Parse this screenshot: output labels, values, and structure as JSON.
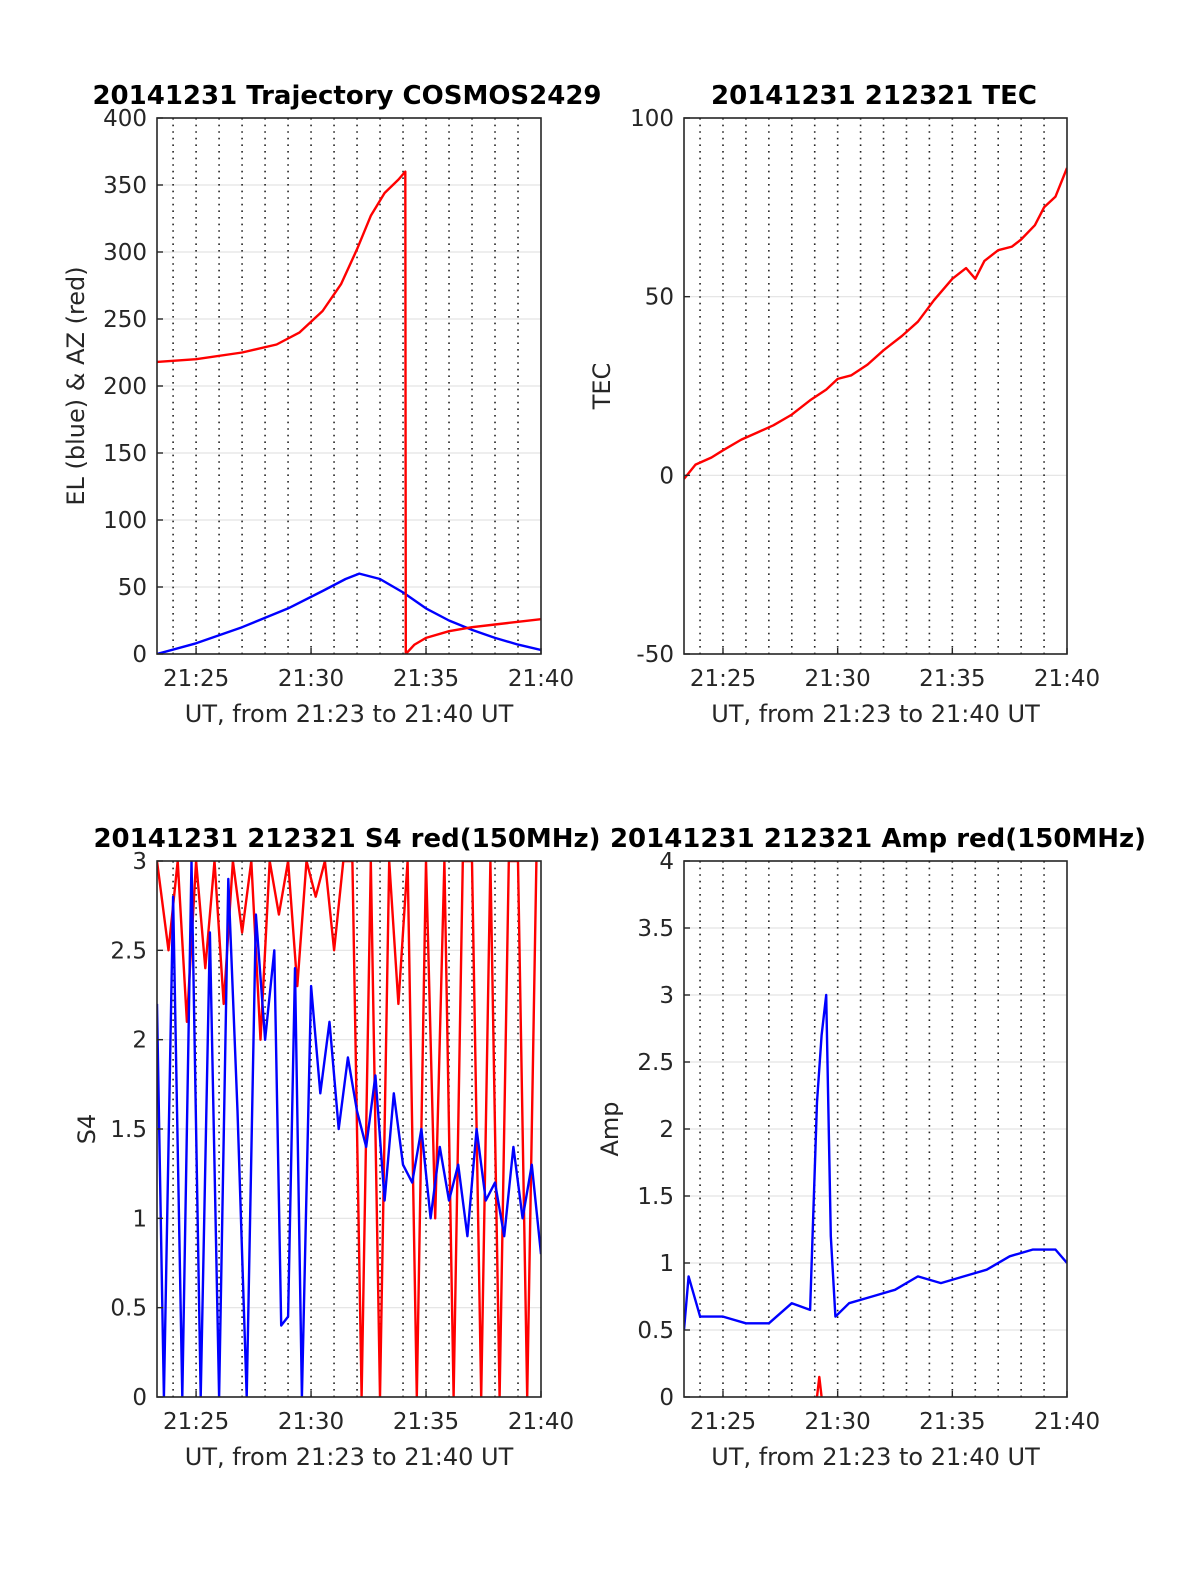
{
  "chart_data": [
    {
      "type": "line",
      "title": "20141231 Trajectory COSMOS2429",
      "xlabel": "UT, from 21:23 to 21:40 UT",
      "ylabel": "EL (blue) & AZ (red)",
      "x_unit": "minutes after 21:00 UT",
      "xlim": [
        23.3,
        40
      ],
      "ylim": [
        0,
        400
      ],
      "xticks": [
        "21:25",
        "21:30",
        "21:35",
        "21:40"
      ],
      "yticks": [
        "0",
        "50",
        "100",
        "150",
        "200",
        "250",
        "300",
        "350",
        "400"
      ],
      "grid": true,
      "colors": {
        "el": "#0000ff",
        "az": "#ff0000"
      },
      "series": [
        {
          "name": "EL",
          "color": "#0000ff",
          "x": [
            23.3,
            25,
            27,
            29,
            30.5,
            31.5,
            32.1,
            33,
            34,
            35,
            36,
            37,
            38,
            39,
            40
          ],
          "y": [
            0,
            8,
            20,
            34,
            47,
            56,
            60,
            56,
            46,
            34,
            25,
            18,
            12,
            7,
            3
          ]
        },
        {
          "name": "AZ",
          "color": "#ff0000",
          "x": [
            23.3,
            25,
            27,
            28.5,
            29.5,
            30.5,
            31.3,
            32,
            32.6,
            33.2,
            33.8,
            34.1,
            34.12,
            34.5,
            35,
            36,
            37,
            38,
            39,
            40
          ],
          "y": [
            218,
            220,
            225,
            231,
            240,
            256,
            276,
            302,
            327,
            344,
            354,
            360,
            0,
            7,
            12,
            17,
            20,
            22,
            24,
            26
          ]
        }
      ]
    },
    {
      "type": "line",
      "title": "20141231 212321 TEC",
      "xlabel": "UT, from 21:23 to 21:40 UT",
      "ylabel": "TEC",
      "xlim": [
        23.3,
        40
      ],
      "ylim": [
        -50,
        100
      ],
      "xticks": [
        "21:25",
        "21:30",
        "21:35",
        "21:40"
      ],
      "yticks": [
        "-50",
        "0",
        "50",
        "100"
      ],
      "grid": true,
      "series": [
        {
          "name": "TEC",
          "color": "#ff0000",
          "x": [
            23.3,
            23.8,
            24.5,
            25,
            25.8,
            26.5,
            27.2,
            28,
            28.8,
            29.5,
            30,
            30.6,
            31.3,
            32,
            32.8,
            33.5,
            34.2,
            35,
            35.6,
            36,
            36.4,
            37,
            37.6,
            38,
            38.6,
            39,
            39.5,
            40
          ],
          "y": [
            -1,
            3,
            5,
            7,
            10,
            12,
            14,
            17,
            21,
            24,
            27,
            28,
            31,
            35,
            39,
            43,
            49,
            55,
            58,
            55,
            60,
            63,
            64,
            66,
            70,
            75,
            78,
            86
          ]
        }
      ]
    },
    {
      "type": "line",
      "title": "20141231 212321 S4 red(150MHz)",
      "xlabel": "UT, from 21:23 to 21:40 UT",
      "ylabel": "S4",
      "xlim": [
        23.3,
        40
      ],
      "ylim": [
        0,
        3
      ],
      "xticks": [
        "21:25",
        "21:30",
        "21:35",
        "21:40"
      ],
      "yticks": [
        "0",
        "0.5",
        "1",
        "1.5",
        "2",
        "2.5",
        "3"
      ],
      "grid": true,
      "series": [
        {
          "color": "#ff0000",
          "x": [
            23.3,
            23.8,
            24.2,
            24.6,
            25.0,
            25.4,
            25.8,
            26.2,
            26.6,
            27.0,
            27.4,
            27.8,
            28.2,
            28.6,
            29.0,
            29.4,
            29.8,
            30.2,
            30.6,
            31.0,
            31.4,
            31.8,
            32.2,
            32.6,
            33.0,
            33.4,
            33.8,
            34.2,
            34.6,
            35.0,
            35.4,
            35.8,
            36.2,
            36.6,
            37.0,
            37.4,
            37.8,
            38.2,
            38.6,
            39.0,
            39.4,
            39.8
          ],
          "y": [
            3.0,
            2.5,
            3.0,
            2.1,
            3.0,
            2.4,
            3.0,
            2.2,
            3.0,
            2.6,
            3.0,
            2.0,
            3.0,
            2.7,
            3.0,
            2.3,
            3.0,
            2.8,
            3.0,
            2.5,
            3.0,
            3.0,
            0.0,
            3.0,
            0.0,
            3.0,
            2.2,
            3.0,
            0.0,
            3.0,
            1.0,
            3.0,
            0.0,
            3.0,
            3.0,
            0.0,
            3.0,
            0.0,
            3.0,
            3.0,
            0.0,
            3.0
          ]
        },
        {
          "color": "#0000ff",
          "x": [
            23.3,
            23.6,
            24.0,
            24.4,
            24.8,
            25.2,
            25.6,
            26.0,
            26.4,
            26.8,
            27.2,
            27.6,
            28.0,
            28.4,
            28.7,
            29.0,
            29.3,
            29.6,
            30.0,
            30.4,
            30.8,
            31.2,
            31.6,
            32.0,
            32.4,
            32.8,
            33.2,
            33.6,
            34.0,
            34.4,
            34.8,
            35.2,
            35.6,
            36.0,
            36.4,
            36.8,
            37.2,
            37.6,
            38.0,
            38.4,
            38.8,
            39.2,
            39.6,
            40.0
          ],
          "y": [
            2.2,
            0.0,
            2.8,
            0.0,
            3.0,
            0.0,
            2.6,
            0.0,
            2.9,
            1.6,
            0.0,
            2.7,
            2.0,
            2.5,
            0.4,
            0.45,
            2.4,
            0.0,
            2.3,
            1.7,
            2.1,
            1.5,
            1.9,
            1.6,
            1.4,
            1.8,
            1.1,
            1.7,
            1.3,
            1.2,
            1.5,
            1.0,
            1.4,
            1.1,
            1.3,
            0.9,
            1.5,
            1.1,
            1.2,
            0.9,
            1.4,
            1.0,
            1.3,
            0.8
          ]
        }
      ]
    },
    {
      "type": "line",
      "title": "20141231 212321 Amp red(150MHz)",
      "xlabel": "UT, from 21:23 to 21:40 UT",
      "ylabel": "Amp",
      "xlim": [
        23.3,
        40
      ],
      "ylim": [
        0,
        4
      ],
      "xticks": [
        "21:25",
        "21:30",
        "21:35",
        "21:40"
      ],
      "yticks": [
        "0",
        "0.5",
        "1",
        "1.5",
        "2",
        "2.5",
        "3",
        "3.5",
        "4"
      ],
      "grid": true,
      "series": [
        {
          "color": "#0000ff",
          "x": [
            23.3,
            23.5,
            24.0,
            25.0,
            26.0,
            27.0,
            28.0,
            28.8,
            29.1,
            29.3,
            29.5,
            29.7,
            29.9,
            30.5,
            31.5,
            32.5,
            33.5,
            34.5,
            35.5,
            36.5,
            37.5,
            38.5,
            39.5,
            40.0
          ],
          "y": [
            0.5,
            0.9,
            0.6,
            0.6,
            0.55,
            0.55,
            0.7,
            0.65,
            2.2,
            2.7,
            3.0,
            1.2,
            0.6,
            0.7,
            0.75,
            0.8,
            0.9,
            0.85,
            0.9,
            0.95,
            1.05,
            1.1,
            1.1,
            1.0
          ]
        },
        {
          "color": "#ff0000",
          "x": [
            29.1,
            29.2,
            29.3
          ],
          "y": [
            0,
            0.15,
            0
          ]
        }
      ]
    }
  ]
}
